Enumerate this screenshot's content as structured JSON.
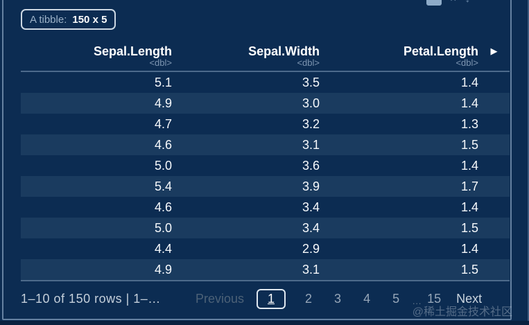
{
  "badge": {
    "prefix": "A tibble:",
    "dimensions": "150 x 5"
  },
  "toolbar": {
    "icons": [
      {
        "name": "export-icon",
        "glyph": ""
      },
      {
        "name": "close-icon",
        "glyph": "×"
      },
      {
        "name": "expand-icon",
        "glyph": "↕"
      }
    ]
  },
  "table": {
    "columns": [
      {
        "label": "Sepal.Length",
        "type": "<dbl>"
      },
      {
        "label": "Sepal.Width",
        "type": "<dbl>"
      },
      {
        "label": "Petal.Length",
        "type": "<dbl>"
      }
    ],
    "next_columns_arrow": "▶",
    "rows": [
      [
        "5.1",
        "3.5",
        "1.4"
      ],
      [
        "4.9",
        "3.0",
        "1.4"
      ],
      [
        "4.7",
        "3.2",
        "1.3"
      ],
      [
        "4.6",
        "3.1",
        "1.5"
      ],
      [
        "5.0",
        "3.6",
        "1.4"
      ],
      [
        "5.4",
        "3.9",
        "1.7"
      ],
      [
        "4.6",
        "3.4",
        "1.4"
      ],
      [
        "5.0",
        "3.4",
        "1.5"
      ],
      [
        "4.4",
        "2.9",
        "1.4"
      ],
      [
        "4.9",
        "3.1",
        "1.5"
      ]
    ]
  },
  "pagination": {
    "info": "1–10 of 150 rows | 1–…",
    "previous": "Previous",
    "current": "1",
    "pages": [
      "2",
      "3",
      "4",
      "5"
    ],
    "ellipsis": "…",
    "last": "15",
    "next": "Next"
  },
  "watermark": "@稀土掘金技术社区",
  "colors": {
    "background": "#0c2c52",
    "row_stripe": "rgba(190,216,242,0.085)",
    "panel_border": "rgba(175,200,226,0.55)",
    "header_text": "#ffffff",
    "type_text": "#7e96b2",
    "cell_text": "#f6f9fc",
    "muted_page": "#96a6b8",
    "disabled": "#4c6177"
  }
}
